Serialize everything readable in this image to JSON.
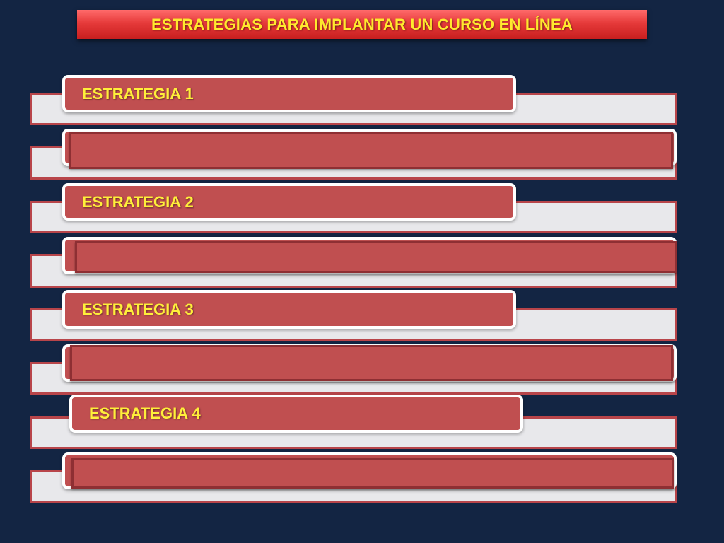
{
  "slide": {
    "title": "ESTRATEGIAS PARA IMPLANTAR UN CURSO EN LÍNEA"
  },
  "strategies": [
    {
      "label": "ESTRATEGIA 1",
      "content": ""
    },
    {
      "label": "ESTRATEGIA 2",
      "content": ""
    },
    {
      "label": "ESTRATEGIA 3",
      "content": ""
    },
    {
      "label": "ESTRATEGIA 4",
      "content": ""
    }
  ],
  "colors": {
    "background": "#132543",
    "title_fill": "#e63a3a",
    "title_text": "#ffe92e",
    "tab_fill": "#c04f50",
    "tab_border": "#ffffff",
    "label_text": "#ffef3a",
    "strip_fill": "#e8e8eb",
    "strip_border": "#b8454a"
  }
}
